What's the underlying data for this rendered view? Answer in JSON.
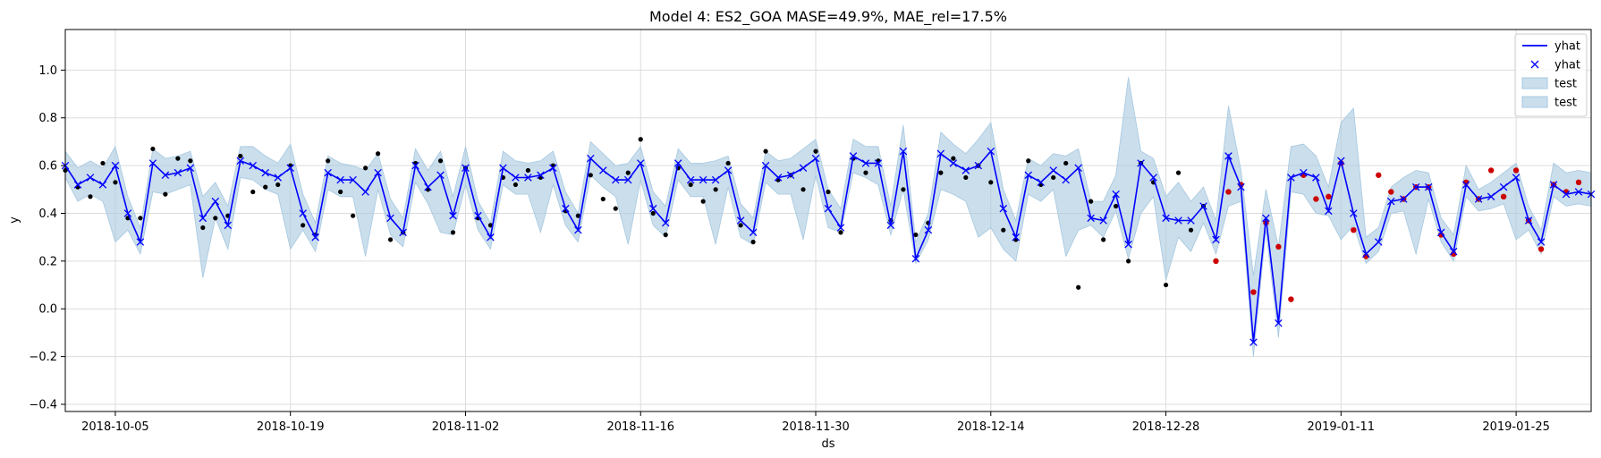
{
  "chart_data": {
    "type": "line",
    "title": "Model 4: ES2_GOA MASE=49.9%, MAE_rel=17.5%",
    "xlabel": "ds",
    "ylabel": "y",
    "x_start": "2018-10-01",
    "x_end": "2019-01-31",
    "xlim": [
      "2018-10-01",
      "2019-01-31"
    ],
    "ylim": [
      -0.43,
      1.17
    ],
    "x_ticks": [
      "2018-10-05",
      "2018-10-19",
      "2018-11-02",
      "2018-11-16",
      "2018-11-30",
      "2018-12-14",
      "2018-12-28",
      "2019-01-11",
      "2019-01-25"
    ],
    "y_ticks": [
      -0.4,
      -0.2,
      0.0,
      0.2,
      0.4,
      0.6,
      0.8,
      1.0
    ],
    "y_tick_labels": [
      "−0.4",
      "−0.2",
      "0.0",
      "0.2",
      "0.4",
      "0.6",
      "0.8",
      "1.0"
    ],
    "grid": true,
    "legend_position": "top-right",
    "legend": [
      {
        "label": "yhat",
        "kind": "line",
        "color": "#0000ff"
      },
      {
        "label": "yhat",
        "kind": "marker-x",
        "color": "#0000ff"
      },
      {
        "label": "test",
        "kind": "band",
        "color": "#a6c8e0"
      },
      {
        "label": "test",
        "kind": "band",
        "color": "#a6c8e0"
      }
    ],
    "series": [
      {
        "name": "yhat",
        "color": "#0000ff",
        "x": [
          "2018-10-01",
          "2018-10-02",
          "2018-10-03",
          "2018-10-04",
          "2018-10-05",
          "2018-10-06",
          "2018-10-07",
          "2018-10-08",
          "2018-10-09",
          "2018-10-10",
          "2018-10-11",
          "2018-10-12",
          "2018-10-13",
          "2018-10-14",
          "2018-10-15",
          "2018-10-16",
          "2018-10-17",
          "2018-10-18",
          "2018-10-19",
          "2018-10-20",
          "2018-10-21",
          "2018-10-22",
          "2018-10-23",
          "2018-10-24",
          "2018-10-25",
          "2018-10-26",
          "2018-10-27",
          "2018-10-28",
          "2018-10-29",
          "2018-10-30",
          "2018-10-31",
          "2018-11-01",
          "2018-11-02",
          "2018-11-03",
          "2018-11-04",
          "2018-11-05",
          "2018-11-06",
          "2018-11-07",
          "2018-11-08",
          "2018-11-09",
          "2018-11-10",
          "2018-11-11",
          "2018-11-12",
          "2018-11-13",
          "2018-11-14",
          "2018-11-15",
          "2018-11-16",
          "2018-11-17",
          "2018-11-18",
          "2018-11-19",
          "2018-11-20",
          "2018-11-21",
          "2018-11-22",
          "2018-11-23",
          "2018-11-24",
          "2018-11-25",
          "2018-11-26",
          "2018-11-27",
          "2018-11-28",
          "2018-11-29",
          "2018-11-30",
          "2018-12-01",
          "2018-12-02",
          "2018-12-03",
          "2018-12-04",
          "2018-12-05",
          "2018-12-06",
          "2018-12-07",
          "2018-12-08",
          "2018-12-09",
          "2018-12-10",
          "2018-12-11",
          "2018-12-12",
          "2018-12-13",
          "2018-12-14",
          "2018-12-15",
          "2018-12-16",
          "2018-12-17",
          "2018-12-18",
          "2018-12-19",
          "2018-12-20",
          "2018-12-21",
          "2018-12-22",
          "2018-12-23",
          "2018-12-24",
          "2018-12-25",
          "2018-12-26",
          "2018-12-27",
          "2018-12-28",
          "2018-12-29",
          "2018-12-30",
          "2018-12-31",
          "2019-01-01",
          "2019-01-02",
          "2019-01-03",
          "2019-01-04",
          "2019-01-05",
          "2019-01-06",
          "2019-01-07",
          "2019-01-08",
          "2019-01-09",
          "2019-01-10",
          "2019-01-11",
          "2019-01-12",
          "2019-01-13",
          "2019-01-14",
          "2019-01-15",
          "2019-01-16",
          "2019-01-17",
          "2019-01-18",
          "2019-01-19",
          "2019-01-20",
          "2019-01-21",
          "2019-01-22",
          "2019-01-23",
          "2019-01-24",
          "2019-01-25",
          "2019-01-26",
          "2019-01-27",
          "2019-01-28",
          "2019-01-29",
          "2019-01-30",
          "2019-01-31"
        ],
        "yhat": [
          0.6,
          0.52,
          0.55,
          0.52,
          0.6,
          0.4,
          0.28,
          0.61,
          0.56,
          0.57,
          0.59,
          0.38,
          0.45,
          0.35,
          0.62,
          0.6,
          0.57,
          0.55,
          0.59,
          0.4,
          0.3,
          0.57,
          0.54,
          0.54,
          0.49,
          0.57,
          0.38,
          0.32,
          0.6,
          0.51,
          0.56,
          0.39,
          0.59,
          0.39,
          0.3,
          0.59,
          0.55,
          0.55,
          0.56,
          0.59,
          0.42,
          0.33,
          0.63,
          0.58,
          0.54,
          0.54,
          0.61,
          0.42,
          0.36,
          0.61,
          0.54,
          0.54,
          0.54,
          0.58,
          0.37,
          0.32,
          0.6,
          0.55,
          0.56,
          0.59,
          0.63,
          0.42,
          0.34,
          0.64,
          0.61,
          0.61,
          0.35,
          0.66,
          0.21,
          0.33,
          0.65,
          0.61,
          0.58,
          0.6,
          0.66,
          0.42,
          0.3,
          0.56,
          0.53,
          0.58,
          0.54,
          0.59,
          0.38,
          0.37,
          0.48,
          0.27,
          0.61,
          0.55,
          0.38,
          0.37,
          0.37,
          0.43,
          0.29,
          0.64,
          0.51,
          -0.14,
          0.38,
          -0.06,
          0.55,
          0.57,
          0.55,
          0.41,
          0.62,
          0.4,
          0.23,
          0.28,
          0.45,
          0.46,
          0.51,
          0.51,
          0.32,
          0.24,
          0.52,
          0.46,
          0.47,
          0.51,
          0.55,
          0.37,
          0.28,
          0.52,
          0.48,
          0.49,
          0.48
        ],
        "lower": [
          0.55,
          0.45,
          0.48,
          0.45,
          0.28,
          0.33,
          0.23,
          0.49,
          0.48,
          0.5,
          0.52,
          0.13,
          0.38,
          0.25,
          0.55,
          0.54,
          0.5,
          0.48,
          0.25,
          0.33,
          0.24,
          0.5,
          0.47,
          0.47,
          0.22,
          0.5,
          0.31,
          0.26,
          0.53,
          0.44,
          0.32,
          0.31,
          0.52,
          0.33,
          0.25,
          0.52,
          0.48,
          0.48,
          0.32,
          0.52,
          0.35,
          0.28,
          0.56,
          0.51,
          0.47,
          0.27,
          0.54,
          0.35,
          0.3,
          0.54,
          0.47,
          0.47,
          0.27,
          0.51,
          0.3,
          0.27,
          0.53,
          0.48,
          0.48,
          0.29,
          0.56,
          0.34,
          0.32,
          0.57,
          0.55,
          0.52,
          0.31,
          0.5,
          0.19,
          0.29,
          0.5,
          0.48,
          0.45,
          0.3,
          0.34,
          0.25,
          0.2,
          0.48,
          0.45,
          0.5,
          0.22,
          0.33,
          0.35,
          0.3,
          0.41,
          0.21,
          0.4,
          0.47,
          0.12,
          0.3,
          0.24,
          0.36,
          0.23,
          0.43,
          0.45,
          -0.2,
          0.33,
          -0.12,
          0.49,
          0.48,
          0.4,
          0.39,
          0.29,
          0.35,
          0.19,
          0.24,
          0.4,
          0.41,
          0.23,
          0.46,
          0.28,
          0.2,
          0.47,
          0.41,
          0.42,
          0.44,
          0.29,
          0.33,
          0.23,
          0.47,
          0.43,
          0.44,
          0.43
        ],
        "upper": [
          0.66,
          0.59,
          0.62,
          0.59,
          0.68,
          0.47,
          0.34,
          0.67,
          0.63,
          0.64,
          0.66,
          0.47,
          0.53,
          0.43,
          0.68,
          0.68,
          0.64,
          0.61,
          0.69,
          0.48,
          0.36,
          0.64,
          0.61,
          0.6,
          0.58,
          0.65,
          0.46,
          0.38,
          0.67,
          0.58,
          0.66,
          0.47,
          0.68,
          0.45,
          0.36,
          0.66,
          0.62,
          0.61,
          0.62,
          0.66,
          0.49,
          0.4,
          0.7,
          0.65,
          0.6,
          0.61,
          0.68,
          0.49,
          0.43,
          0.67,
          0.61,
          0.61,
          0.62,
          0.64,
          0.44,
          0.38,
          0.66,
          0.62,
          0.63,
          0.67,
          0.71,
          0.5,
          0.42,
          0.71,
          0.68,
          0.68,
          0.43,
          0.77,
          0.28,
          0.4,
          0.74,
          0.69,
          0.65,
          0.71,
          0.78,
          0.5,
          0.37,
          0.63,
          0.6,
          0.65,
          0.64,
          0.67,
          0.45,
          0.45,
          0.56,
          0.97,
          0.66,
          0.63,
          0.47,
          0.53,
          0.45,
          0.51,
          0.37,
          0.85,
          0.58,
          0.14,
          0.5,
          0.26,
          0.68,
          0.69,
          0.64,
          0.51,
          0.78,
          0.84,
          0.3,
          0.34,
          0.51,
          0.55,
          0.58,
          0.57,
          0.38,
          0.31,
          0.6,
          0.5,
          0.53,
          0.57,
          0.61,
          0.43,
          0.33,
          0.61,
          0.57,
          0.58,
          0.57
        ]
      },
      {
        "name": "y",
        "color": "#000000",
        "x": [
          "2018-10-01",
          "2018-10-02",
          "2018-10-03",
          "2018-10-04",
          "2018-10-05",
          "2018-10-06",
          "2018-10-07",
          "2018-10-08",
          "2018-10-09",
          "2018-10-10",
          "2018-10-11",
          "2018-10-12",
          "2018-10-13",
          "2018-10-14",
          "2018-10-15",
          "2018-10-16",
          "2018-10-17",
          "2018-10-18",
          "2018-10-19",
          "2018-10-20",
          "2018-10-21",
          "2018-10-22",
          "2018-10-23",
          "2018-10-24",
          "2018-10-25",
          "2018-10-26",
          "2018-10-27",
          "2018-10-28",
          "2018-10-29",
          "2018-10-30",
          "2018-10-31",
          "2018-11-01",
          "2018-11-02",
          "2018-11-03",
          "2018-11-04",
          "2018-11-05",
          "2018-11-06",
          "2018-11-07",
          "2018-11-08",
          "2018-11-09",
          "2018-11-10",
          "2018-11-11",
          "2018-11-12",
          "2018-11-13",
          "2018-11-14",
          "2018-11-15",
          "2018-11-16",
          "2018-11-17",
          "2018-11-18",
          "2018-11-19",
          "2018-11-20",
          "2018-11-21",
          "2018-11-22",
          "2018-11-23",
          "2018-11-24",
          "2018-11-25",
          "2018-11-26",
          "2018-11-27",
          "2018-11-28",
          "2018-11-29",
          "2018-11-30",
          "2018-12-01",
          "2018-12-02",
          "2018-12-03",
          "2018-12-04",
          "2018-12-05",
          "2018-12-06",
          "2018-12-07",
          "2018-12-08",
          "2018-12-09",
          "2018-12-10",
          "2018-12-11",
          "2018-12-12",
          "2018-12-13",
          "2018-12-14",
          "2018-12-15",
          "2018-12-16",
          "2018-12-17",
          "2018-12-18",
          "2018-12-19",
          "2018-12-20",
          "2018-12-21",
          "2018-12-22",
          "2018-12-23",
          "2018-12-24",
          "2018-12-25",
          "2018-12-26",
          "2018-12-27",
          "2018-12-28",
          "2018-12-29",
          "2018-12-30",
          "2018-12-31"
        ],
        "y": [
          0.58,
          0.51,
          0.47,
          0.61,
          0.53,
          0.38,
          0.38,
          0.67,
          0.48,
          0.63,
          0.62,
          0.34,
          0.38,
          0.39,
          0.64,
          0.49,
          0.51,
          0.52,
          0.6,
          0.35,
          0.31,
          0.62,
          0.49,
          0.39,
          0.59,
          0.65,
          0.29,
          0.32,
          0.61,
          0.5,
          0.62,
          0.32,
          0.59,
          0.38,
          0.35,
          0.55,
          0.52,
          0.58,
          0.55,
          0.6,
          0.41,
          0.39,
          0.56,
          0.46,
          0.42,
          0.57,
          0.71,
          0.4,
          0.31,
          0.59,
          0.52,
          0.45,
          0.5,
          0.61,
          0.35,
          0.28,
          0.66,
          0.54,
          0.56,
          0.5,
          0.66,
          0.49,
          0.32,
          0.63,
          0.57,
          0.62,
          0.37,
          0.5,
          0.31,
          0.36,
          0.57,
          0.63,
          0.55,
          0.6,
          0.53,
          0.33,
          0.29,
          0.62,
          0.52,
          0.55,
          0.61,
          0.09,
          0.45,
          0.29,
          0.43,
          0.2,
          0.61,
          0.53,
          0.1,
          0.57,
          0.33,
          0.43
        ]
      },
      {
        "name": "test",
        "color": "#cc0000",
        "x": [
          "2019-01-01",
          "2019-01-02",
          "2019-01-03",
          "2019-01-04",
          "2019-01-05",
          "2019-01-06",
          "2019-01-07",
          "2019-01-08",
          "2019-01-09",
          "2019-01-10",
          "2019-01-11",
          "2019-01-12",
          "2019-01-13",
          "2019-01-14",
          "2019-01-15",
          "2019-01-16",
          "2019-01-17",
          "2019-01-18",
          "2019-01-19",
          "2019-01-20",
          "2019-01-21",
          "2019-01-22",
          "2019-01-23",
          "2019-01-24",
          "2019-01-25",
          "2019-01-26",
          "2019-01-27",
          "2019-01-28",
          "2019-01-29",
          "2019-01-30"
        ],
        "y": [
          0.2,
          0.49,
          0.52,
          0.07,
          0.36,
          0.26,
          0.04,
          0.56,
          0.46,
          0.47,
          0.61,
          0.33,
          0.22,
          0.56,
          0.49,
          0.46,
          0.51,
          0.51,
          0.31,
          0.23,
          0.53,
          0.46,
          0.58,
          0.47,
          0.58,
          0.37,
          0.25,
          0.52,
          0.49,
          0.53
        ]
      }
    ]
  }
}
